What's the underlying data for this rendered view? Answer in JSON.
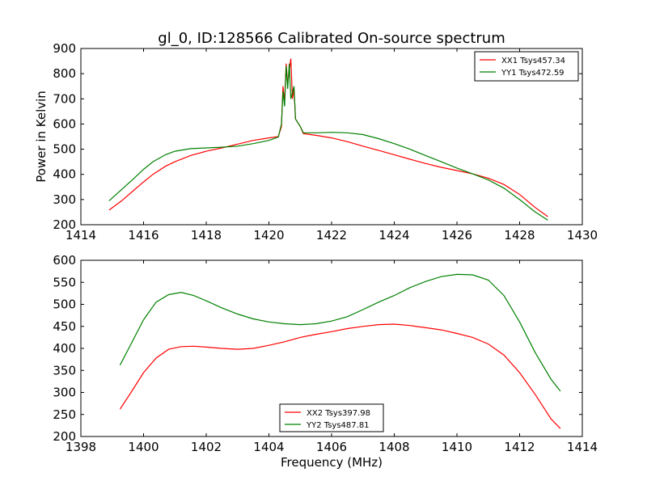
{
  "figure": {
    "title": "gl_0, ID:128566 Calibrated On-source spectrum"
  },
  "chart_data": [
    {
      "type": "line",
      "title": "gl_0, ID:128566 Calibrated On-source spectrum",
      "xlabel": "",
      "ylabel": "Power in Kelvin",
      "xlim": [
        1414,
        1430
      ],
      "ylim": [
        200,
        900
      ],
      "xticks": [
        1414,
        1416,
        1418,
        1420,
        1422,
        1424,
        1426,
        1428,
        1430
      ],
      "yticks": [
        200,
        300,
        400,
        500,
        600,
        700,
        800,
        900
      ],
      "grid": false,
      "legend": "top-right",
      "series": [
        {
          "name": "XX1 Tsys457.34",
          "color": "#ff0000",
          "points": [
            [
              1414.9,
              258
            ],
            [
              1415.3,
              295
            ],
            [
              1415.7,
              338
            ],
            [
              1416.0,
              370
            ],
            [
              1416.3,
              400
            ],
            [
              1416.7,
              432
            ],
            [
              1417.0,
              450
            ],
            [
              1417.5,
              475
            ],
            [
              1418.0,
              492
            ],
            [
              1418.5,
              505
            ],
            [
              1419.0,
              520
            ],
            [
              1419.5,
              535
            ],
            [
              1420.0,
              545
            ],
            [
              1420.3,
              550
            ],
            [
              1420.4,
              590
            ],
            [
              1420.45,
              750
            ],
            [
              1420.5,
              690
            ],
            [
              1420.55,
              840
            ],
            [
              1420.6,
              760
            ],
            [
              1420.7,
              860
            ],
            [
              1420.75,
              700
            ],
            [
              1420.8,
              740
            ],
            [
              1420.85,
              620
            ],
            [
              1421.0,
              590
            ],
            [
              1421.1,
              562
            ],
            [
              1421.5,
              555
            ],
            [
              1422.0,
              545
            ],
            [
              1422.5,
              530
            ],
            [
              1423.0,
              512
            ],
            [
              1423.5,
              495
            ],
            [
              1424.0,
              478
            ],
            [
              1424.5,
              460
            ],
            [
              1425.0,
              443
            ],
            [
              1425.5,
              428
            ],
            [
              1426.0,
              415
            ],
            [
              1426.5,
              402
            ],
            [
              1427.0,
              385
            ],
            [
              1427.5,
              360
            ],
            [
              1428.0,
              320
            ],
            [
              1428.5,
              268
            ],
            [
              1428.9,
              232
            ]
          ]
        },
        {
          "name": "YY1 Tsys472.59",
          "color": "#008000",
          "points": [
            [
              1414.9,
              295
            ],
            [
              1415.3,
              340
            ],
            [
              1415.7,
              385
            ],
            [
              1416.0,
              420
            ],
            [
              1416.3,
              450
            ],
            [
              1416.7,
              478
            ],
            [
              1417.0,
              492
            ],
            [
              1417.5,
              502
            ],
            [
              1418.0,
              505
            ],
            [
              1418.5,
              508
            ],
            [
              1419.0,
              512
            ],
            [
              1419.5,
              522
            ],
            [
              1420.0,
              535
            ],
            [
              1420.3,
              548
            ],
            [
              1420.4,
              600
            ],
            [
              1420.45,
              730
            ],
            [
              1420.5,
              670
            ],
            [
              1420.55,
              830
            ],
            [
              1420.6,
              740
            ],
            [
              1420.65,
              840
            ],
            [
              1420.7,
              700
            ],
            [
              1420.8,
              750
            ],
            [
              1420.85,
              620
            ],
            [
              1421.0,
              590
            ],
            [
              1421.1,
              565
            ],
            [
              1421.5,
              565
            ],
            [
              1422.0,
              567
            ],
            [
              1422.5,
              565
            ],
            [
              1423.0,
              558
            ],
            [
              1423.5,
              542
            ],
            [
              1424.0,
              522
            ],
            [
              1424.5,
              500
            ],
            [
              1425.0,
              475
            ],
            [
              1425.5,
              450
            ],
            [
              1426.0,
              425
            ],
            [
              1426.5,
              402
            ],
            [
              1427.0,
              378
            ],
            [
              1427.5,
              345
            ],
            [
              1428.0,
              300
            ],
            [
              1428.5,
              250
            ],
            [
              1428.9,
              218
            ]
          ]
        }
      ]
    },
    {
      "type": "line",
      "title": "",
      "xlabel": "Frequency (MHz)",
      "ylabel": "",
      "xlim": [
        1398,
        1414
      ],
      "ylim": [
        200,
        600
      ],
      "xticks": [
        1398,
        1400,
        1402,
        1404,
        1406,
        1408,
        1410,
        1412,
        1414
      ],
      "yticks": [
        200,
        250,
        300,
        350,
        400,
        450,
        500,
        550,
        600
      ],
      "grid": false,
      "legend": "bottom-center",
      "series": [
        {
          "name": "XX2 Tsys397.98",
          "color": "#ff0000",
          "points": [
            [
              1399.25,
              262
            ],
            [
              1399.6,
              300
            ],
            [
              1400.0,
              345
            ],
            [
              1400.4,
              378
            ],
            [
              1400.8,
              398
            ],
            [
              1401.2,
              404
            ],
            [
              1401.6,
              405
            ],
            [
              1402.0,
              403
            ],
            [
              1402.5,
              400
            ],
            [
              1403.0,
              398
            ],
            [
              1403.5,
              400
            ],
            [
              1404.0,
              407
            ],
            [
              1404.5,
              415
            ],
            [
              1405.0,
              425
            ],
            [
              1405.5,
              432
            ],
            [
              1406.0,
              438
            ],
            [
              1406.5,
              445
            ],
            [
              1407.0,
              450
            ],
            [
              1407.5,
              454
            ],
            [
              1408.0,
              455
            ],
            [
              1408.5,
              452
            ],
            [
              1409.0,
              447
            ],
            [
              1409.5,
              442
            ],
            [
              1410.0,
              434
            ],
            [
              1410.5,
              425
            ],
            [
              1411.0,
              410
            ],
            [
              1411.5,
              385
            ],
            [
              1412.0,
              345
            ],
            [
              1412.5,
              295
            ],
            [
              1413.0,
              240
            ],
            [
              1413.3,
              218
            ]
          ]
        },
        {
          "name": "YY2 Tsys487.81",
          "color": "#008000",
          "points": [
            [
              1399.25,
              362
            ],
            [
              1399.6,
              410
            ],
            [
              1400.0,
              465
            ],
            [
              1400.4,
              505
            ],
            [
              1400.8,
              522
            ],
            [
              1401.2,
              527
            ],
            [
              1401.6,
              520
            ],
            [
              1402.0,
              508
            ],
            [
              1402.5,
              492
            ],
            [
              1403.0,
              478
            ],
            [
              1403.5,
              467
            ],
            [
              1404.0,
              460
            ],
            [
              1404.5,
              456
            ],
            [
              1405.0,
              454
            ],
            [
              1405.5,
              456
            ],
            [
              1406.0,
              462
            ],
            [
              1406.5,
              472
            ],
            [
              1407.0,
              488
            ],
            [
              1407.5,
              505
            ],
            [
              1408.0,
              520
            ],
            [
              1408.5,
              538
            ],
            [
              1409.0,
              552
            ],
            [
              1409.5,
              563
            ],
            [
              1410.0,
              568
            ],
            [
              1410.5,
              567
            ],
            [
              1411.0,
              555
            ],
            [
              1411.5,
              520
            ],
            [
              1412.0,
              460
            ],
            [
              1412.5,
              390
            ],
            [
              1413.0,
              330
            ],
            [
              1413.3,
              303
            ]
          ]
        }
      ]
    }
  ]
}
